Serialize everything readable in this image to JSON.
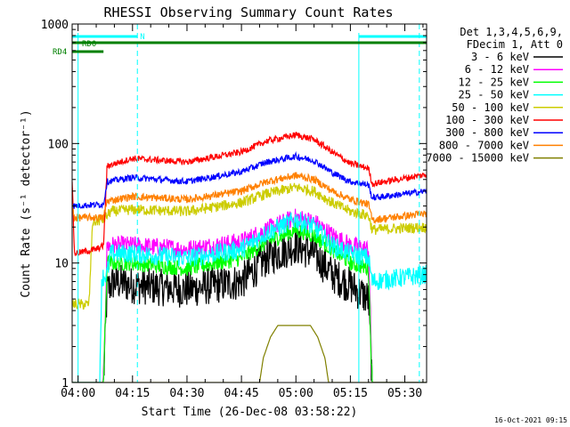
{
  "chart_data": {
    "type": "line",
    "title": "RHESSI Observing Summary Count Rates",
    "xlabel": "Start Time (26-Dec-08 03:58:22)",
    "ylabel": "Count Rate (s⁻¹ detector⁻¹)",
    "xscale": "time",
    "yscale": "log",
    "xlim": [
      "03:58:22",
      "05:36:00"
    ],
    "ylim": [
      1,
      1000
    ],
    "x_ticks": [
      "04:00",
      "04:15",
      "04:30",
      "04:45",
      "05:00",
      "05:15",
      "05:30"
    ],
    "y_ticks": [
      "1",
      "10",
      "100",
      "1000"
    ],
    "legend_header": [
      "Det 1,3,4,5,6,9,",
      "FDecim 1, Att 0"
    ],
    "legend_position": "right",
    "timestamp": "16-Oct-2021 09:15",
    "flag_labels": [
      "RD0",
      "RD4",
      "N"
    ],
    "flags": [
      {
        "label": "RD0",
        "color": "#008000",
        "start": "03:58:22",
        "end": "05:36:00"
      },
      {
        "label": "RD4",
        "color": "#008000",
        "start": "03:58:22",
        "end": "04:07:00"
      },
      {
        "label": "N",
        "color": "#00ffff",
        "start": "03:58:22",
        "end": "04:16:20"
      },
      {
        "label": "N",
        "color": "#00ffff",
        "start": "05:17:20",
        "end": "05:36:00"
      }
    ],
    "night_boundaries": [
      "04:16:20",
      "05:34:00"
    ],
    "saa_boundaries": [
      "04:00:00",
      "05:17:20"
    ],
    "series": [
      {
        "name": "3 - 6 keV",
        "color": "#000000",
        "noise": 0.35,
        "values": [
          [
            "03:58:22",
            1
          ],
          [
            "04:05:00",
            1
          ],
          [
            "04:07:00",
            1
          ],
          [
            "04:08:00",
            6
          ],
          [
            "04:10:00",
            7
          ],
          [
            "04:15:00",
            6.5
          ],
          [
            "04:30:00",
            6
          ],
          [
            "04:45:00",
            7
          ],
          [
            "04:52:00",
            11
          ],
          [
            "05:00:00",
            14
          ],
          [
            "05:05:00",
            12
          ],
          [
            "05:10:00",
            8
          ],
          [
            "05:15:00",
            6.5
          ],
          [
            "05:20:00",
            5
          ],
          [
            "05:21:00",
            1
          ],
          [
            "05:36:00",
            1
          ]
        ]
      },
      {
        "name": "6 - 12 keV",
        "color": "#ff00ff",
        "noise": 0.18,
        "values": [
          [
            "03:58:22",
            1
          ],
          [
            "04:07:00",
            1
          ],
          [
            "04:08:00",
            14
          ],
          [
            "04:15:00",
            14
          ],
          [
            "04:30:00",
            13
          ],
          [
            "04:45:00",
            15
          ],
          [
            "04:52:00",
            19
          ],
          [
            "05:00:00",
            24
          ],
          [
            "05:05:00",
            22
          ],
          [
            "05:10:00",
            17
          ],
          [
            "05:15:00",
            14
          ],
          [
            "05:20:00",
            13
          ],
          [
            "05:21:00",
            1
          ],
          [
            "05:36:00",
            1
          ]
        ]
      },
      {
        "name": "12 - 25 keV",
        "color": "#00ff00",
        "noise": 0.15,
        "values": [
          [
            "03:58:22",
            1
          ],
          [
            "04:07:00",
            1
          ],
          [
            "04:08:00",
            10
          ],
          [
            "04:15:00",
            10
          ],
          [
            "04:30:00",
            9
          ],
          [
            "04:45:00",
            11
          ],
          [
            "04:52:00",
            15
          ],
          [
            "05:00:00",
            19
          ],
          [
            "05:05:00",
            17
          ],
          [
            "05:10:00",
            13
          ],
          [
            "05:15:00",
            10
          ],
          [
            "05:20:00",
            9
          ],
          [
            "05:21:00",
            1
          ],
          [
            "05:36:00",
            1
          ]
        ]
      },
      {
        "name": "25 - 50 keV",
        "color": "#00ffff",
        "noise": 0.18,
        "values": [
          [
            "03:58:22",
            1
          ],
          [
            "04:06:00",
            1
          ],
          [
            "04:06:30",
            7.5
          ],
          [
            "04:08:00",
            8
          ],
          [
            "04:09:00",
            12
          ],
          [
            "04:15:00",
            12
          ],
          [
            "04:30:00",
            11
          ],
          [
            "04:45:00",
            13
          ],
          [
            "04:52:00",
            18
          ],
          [
            "05:00:00",
            23
          ],
          [
            "05:05:00",
            20
          ],
          [
            "05:10:00",
            14
          ],
          [
            "05:15:00",
            12
          ],
          [
            "05:20:00",
            11
          ],
          [
            "05:21:00",
            7
          ],
          [
            "05:36:00",
            8
          ]
        ]
      },
      {
        "name": "50 - 100 keV",
        "color": "#cccc00",
        "noise": 0.1,
        "values": [
          [
            "03:58:22",
            4.5
          ],
          [
            "04:03:00",
            4.5
          ],
          [
            "04:04:00",
            22
          ],
          [
            "04:07:00",
            23
          ],
          [
            "04:09:00",
            27
          ],
          [
            "04:15:00",
            28
          ],
          [
            "04:30:00",
            27
          ],
          [
            "04:45:00",
            32
          ],
          [
            "04:52:00",
            38
          ],
          [
            "05:00:00",
            43
          ],
          [
            "05:05:00",
            40
          ],
          [
            "05:10:00",
            32
          ],
          [
            "05:15:00",
            27
          ],
          [
            "05:20:00",
            25
          ],
          [
            "05:21:00",
            19
          ],
          [
            "05:36:00",
            20
          ]
        ]
      },
      {
        "name": "100 - 300 keV",
        "color": "#ff0000",
        "noise": 0.06,
        "values": [
          [
            "03:58:22",
            50
          ],
          [
            "03:59:00",
            12
          ],
          [
            "04:05:00",
            13
          ],
          [
            "04:07:00",
            14
          ],
          [
            "04:08:00",
            65
          ],
          [
            "04:15:00",
            75
          ],
          [
            "04:30:00",
            70
          ],
          [
            "04:45:00",
            85
          ],
          [
            "04:52:00",
            105
          ],
          [
            "05:00:00",
            118
          ],
          [
            "05:05:00",
            108
          ],
          [
            "05:10:00",
            85
          ],
          [
            "05:15:00",
            68
          ],
          [
            "05:20:00",
            62
          ],
          [
            "05:21:00",
            46
          ],
          [
            "05:36:00",
            55
          ]
        ]
      },
      {
        "name": "300 - 800 keV",
        "color": "#0000ff",
        "noise": 0.06,
        "values": [
          [
            "03:58:22",
            30
          ],
          [
            "04:07:00",
            31
          ],
          [
            "04:08:00",
            48
          ],
          [
            "04:15:00",
            52
          ],
          [
            "04:30:00",
            48
          ],
          [
            "04:45:00",
            58
          ],
          [
            "04:52:00",
            70
          ],
          [
            "05:00:00",
            78
          ],
          [
            "05:05:00",
            72
          ],
          [
            "05:10:00",
            57
          ],
          [
            "05:15:00",
            48
          ],
          [
            "05:20:00",
            45
          ],
          [
            "05:21:00",
            35
          ],
          [
            "05:36:00",
            40
          ]
        ]
      },
      {
        "name": "800 - 7000 keV",
        "color": "#ff8000",
        "noise": 0.07,
        "values": [
          [
            "03:58:22",
            30
          ],
          [
            "03:59:00",
            24
          ],
          [
            "04:07:00",
            24
          ],
          [
            "04:08:00",
            33
          ],
          [
            "04:15:00",
            36
          ],
          [
            "04:30:00",
            34
          ],
          [
            "04:45:00",
            40
          ],
          [
            "04:52:00",
            48
          ],
          [
            "05:00:00",
            54
          ],
          [
            "05:05:00",
            50
          ],
          [
            "05:10:00",
            40
          ],
          [
            "05:15:00",
            34
          ],
          [
            "05:20:00",
            31
          ],
          [
            "05:21:00",
            23
          ],
          [
            "05:36:00",
            26
          ]
        ]
      },
      {
        "name": "7000 - 15000 keV",
        "color": "#808000",
        "noise": 0,
        "values": [
          [
            "03:58:22",
            1
          ],
          [
            "04:50:00",
            1
          ],
          [
            "04:51:00",
            1.6
          ],
          [
            "04:53:00",
            2.4
          ],
          [
            "04:55:00",
            3.0
          ],
          [
            "05:04:00",
            3.0
          ],
          [
            "05:06:00",
            2.4
          ],
          [
            "05:08:00",
            1.6
          ],
          [
            "05:09:00",
            1
          ],
          [
            "05:36:00",
            1
          ]
        ]
      }
    ]
  }
}
